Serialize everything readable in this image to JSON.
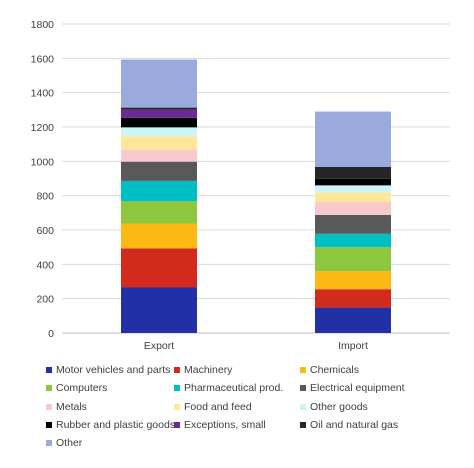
{
  "chart_data": {
    "type": "bar",
    "stacked": true,
    "categories": [
      "Export",
      "Import"
    ],
    "ylim": [
      0,
      1800
    ],
    "yticks": [
      0,
      200,
      400,
      600,
      800,
      1000,
      1200,
      1400,
      1600,
      1800
    ],
    "grid": "horizontal",
    "legend_position": "bottom",
    "series": [
      {
        "name": "Motor vehicles and parts",
        "color": "#2230A6",
        "values": [
          265,
          148
        ]
      },
      {
        "name": "Machinery",
        "color": "#D22B1E",
        "values": [
          228,
          107
        ]
      },
      {
        "name": "Chemicals",
        "color": "#FDB913",
        "values": [
          145,
          105
        ]
      },
      {
        "name": "Computers",
        "color": "#8DC63F",
        "values": [
          130,
          140
        ]
      },
      {
        "name": "Pharmaceutical prod.",
        "color": "#00BFC4",
        "values": [
          118,
          78
        ]
      },
      {
        "name": "Electrical equipment",
        "color": "#595959",
        "values": [
          112,
          110
        ]
      },
      {
        "name": "Metals",
        "color": "#F8C9CC",
        "values": [
          70,
          75
        ]
      },
      {
        "name": "Food and feed",
        "color": "#FFE699",
        "values": [
          78,
          55
        ]
      },
      {
        "name": "Other goods",
        "color": "#CCF5F7",
        "values": [
          52,
          42
        ]
      },
      {
        "name": "Rubber and plastic goods",
        "color": "#000000",
        "values": [
          55,
          38
        ]
      },
      {
        "name": "Exceptions, small",
        "color": "#6A2C91",
        "values": [
          48,
          0
        ]
      },
      {
        "name": "Oil and natural gas",
        "color": "#262626",
        "values": [
          12,
          70
        ]
      },
      {
        "name": "Other",
        "color": "#9AA9DE",
        "values": [
          280,
          322
        ]
      }
    ]
  }
}
